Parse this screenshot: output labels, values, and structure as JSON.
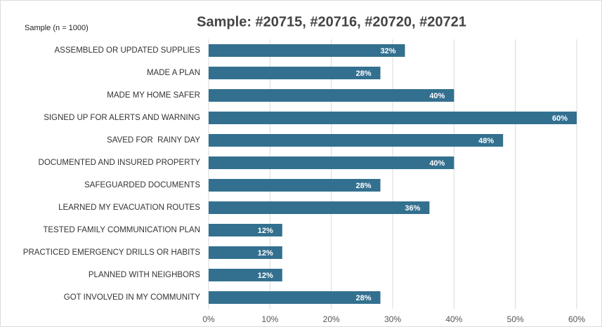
{
  "chart_data": {
    "type": "bar",
    "orientation": "horizontal",
    "title": "Sample: #20715, #20716, #20720, #20721",
    "subtitle": "Sample (n = 1000)",
    "categories": [
      "ASSEMBLED OR UPDATED SUPPLIES",
      "MADE A PLAN",
      "MADE MY HOME SAFER",
      "SIGNED UP FOR ALERTS AND WARNING",
      "SAVED FOR  RAINY DAY",
      "DOCUMENTED AND INSURED PROPERTY",
      "SAFEGUARDED DOCUMENTS",
      "LEARNED MY EVACUATION ROUTES",
      "TESTED FAMILY COMMUNICATION PLAN",
      "PRACTICED EMERGENCY DRILLS OR HABITS",
      "PLANNED WITH NEIGHBORS",
      "GOT INVOLVED IN MY COMMUNITY"
    ],
    "values": [
      32,
      28,
      40,
      60,
      48,
      40,
      28,
      36,
      12,
      12,
      12,
      28
    ],
    "value_labels": [
      "32%",
      "28%",
      "40%",
      "60%",
      "48%",
      "40%",
      "28%",
      "36%",
      "12%",
      "12%",
      "12%",
      "28%"
    ],
    "color": "#33708f",
    "xlim": [
      0,
      60
    ],
    "xticks": [
      {
        "value": 0,
        "label": "0%"
      },
      {
        "value": 10,
        "label": "10%"
      },
      {
        "value": 20,
        "label": "20%"
      },
      {
        "value": 30,
        "label": "30%"
      },
      {
        "value": 40,
        "label": "40%"
      },
      {
        "value": 50,
        "label": "50%"
      },
      {
        "value": 60,
        "label": "60%"
      }
    ],
    "grid": true
  }
}
